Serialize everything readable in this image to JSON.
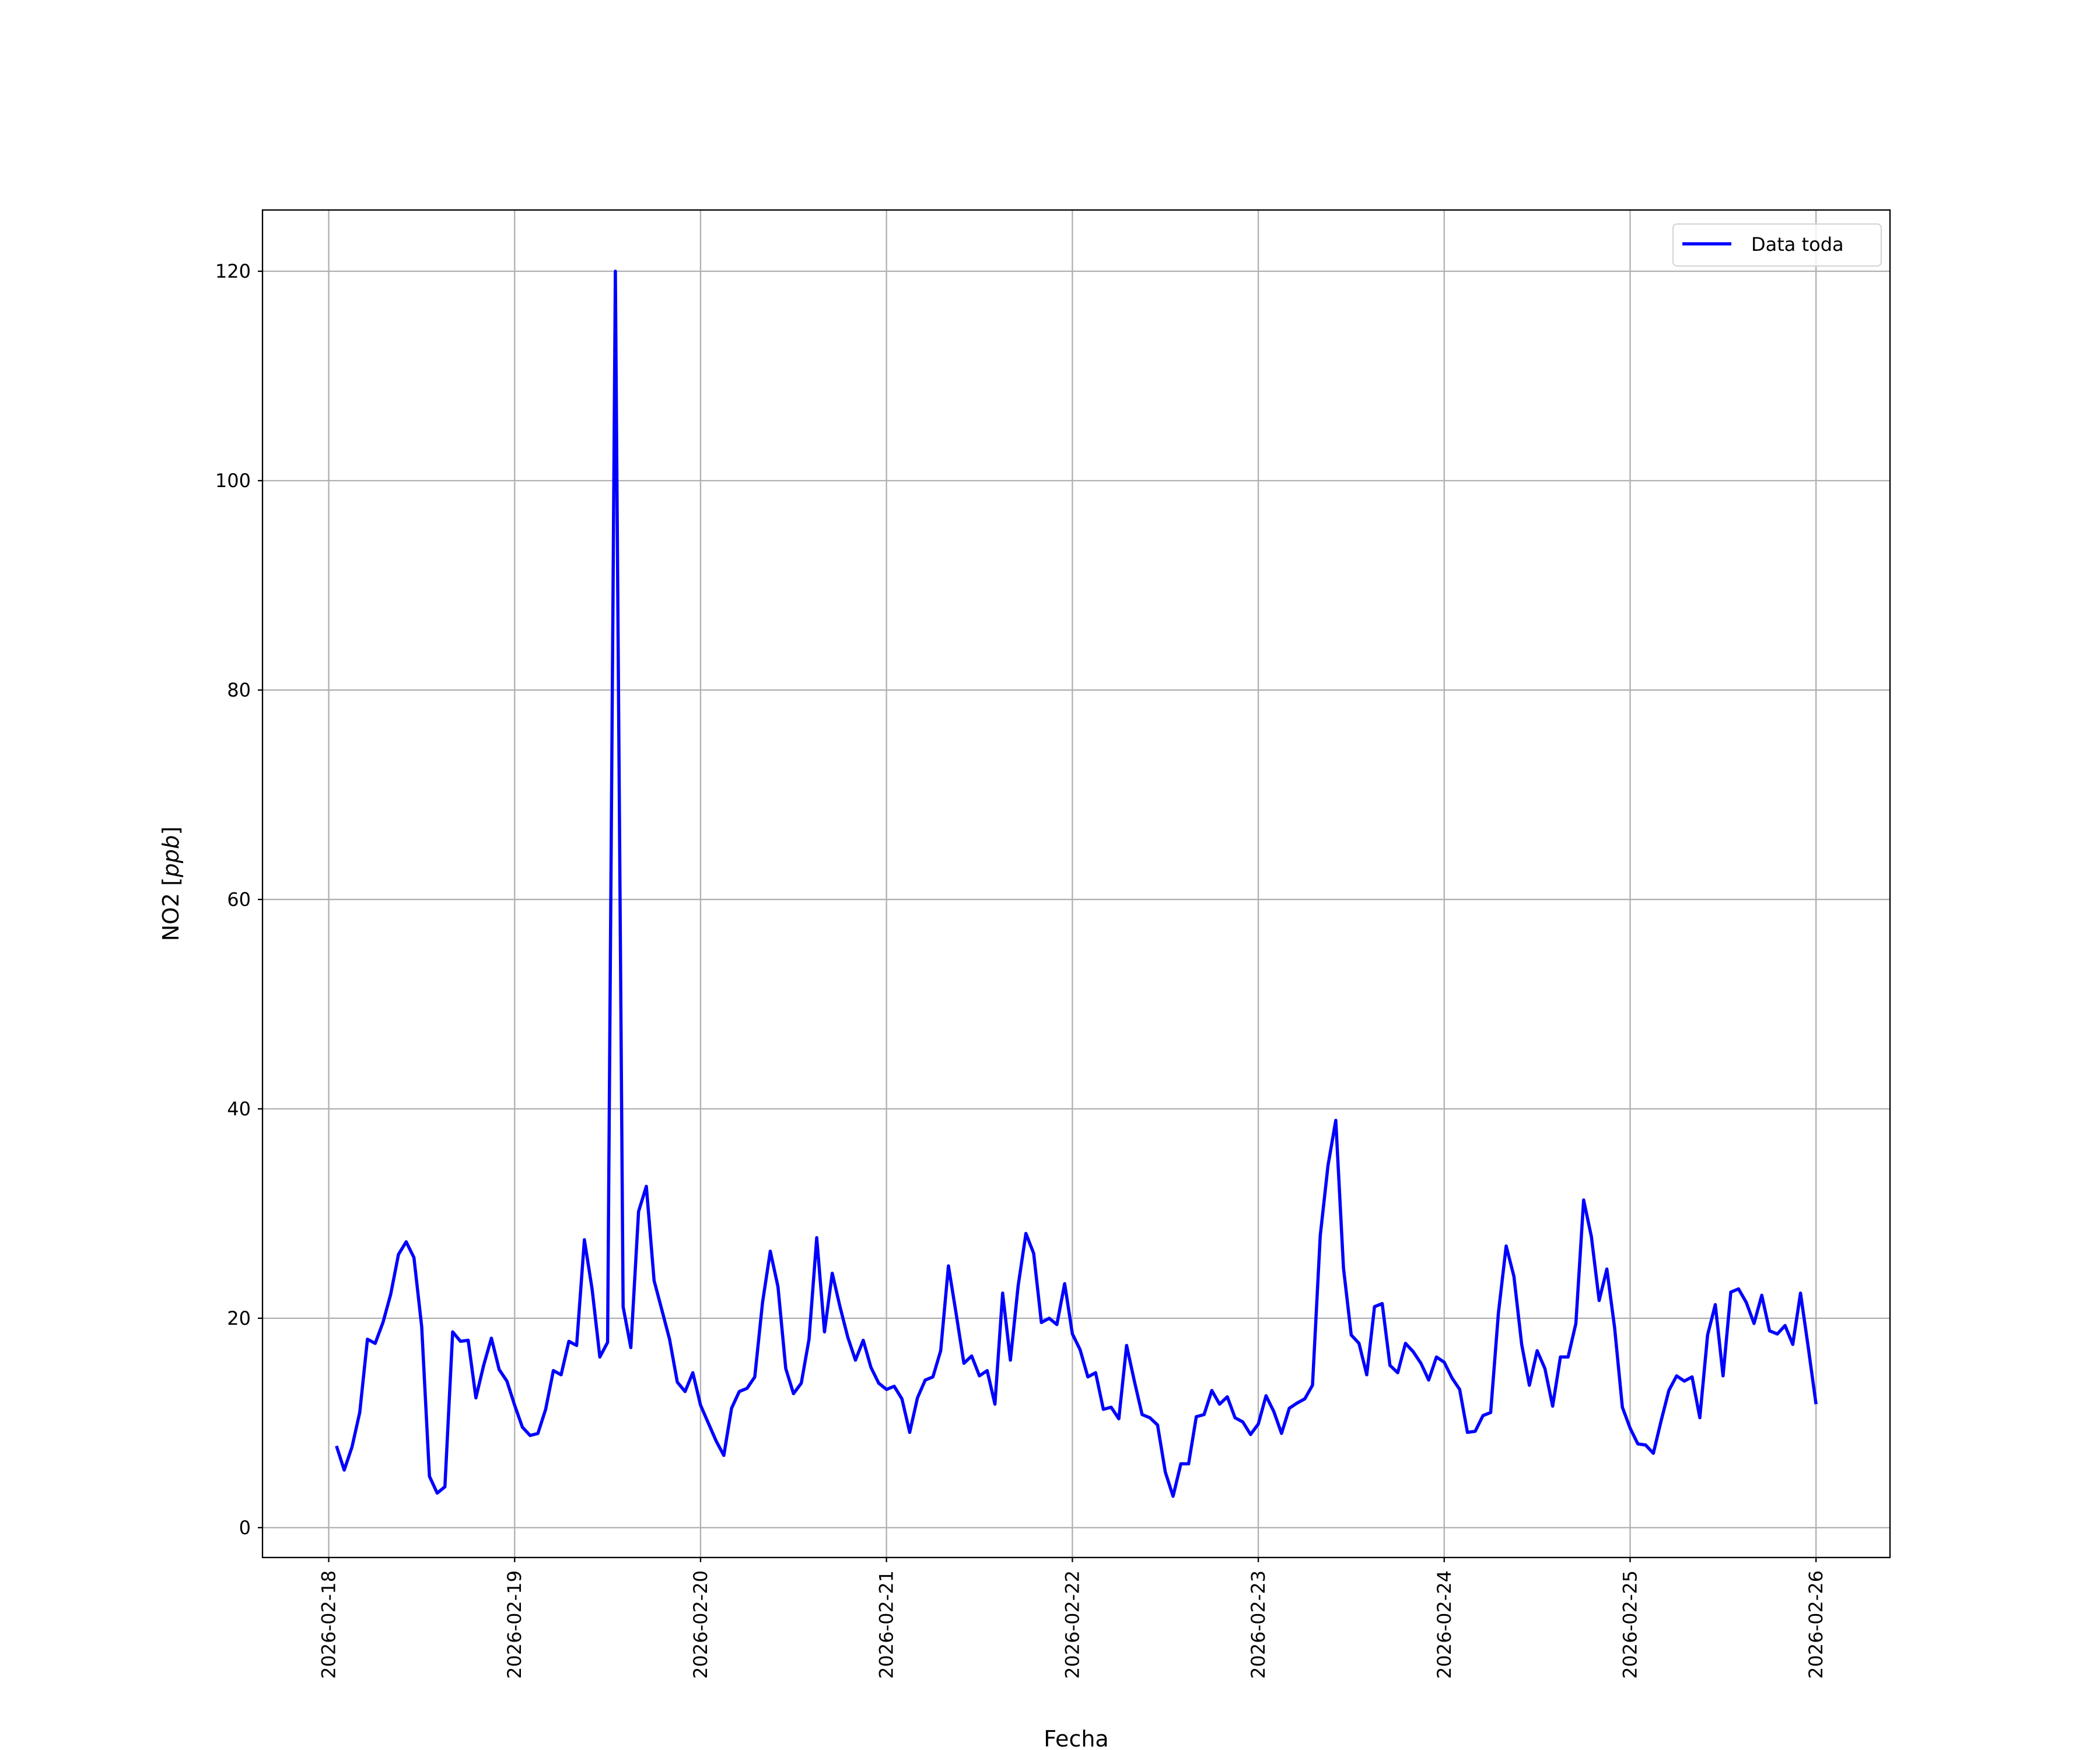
{
  "chart_data": {
    "type": "line",
    "title": "",
    "xlabel": "Fecha",
    "ylabel": "NO2 [ppb]",
    "ylabel_parts": {
      "plain": "NO2 [",
      "italic": "ppb",
      "close": "]"
    },
    "x_type": "datetime",
    "xlim": [
      "2026-02-17T15:27",
      "2026-02-26T09:33"
    ],
    "ylim": [
      -2.85,
      125.85
    ],
    "x_ticks": [
      "2026-02-18",
      "2026-02-19",
      "2026-02-20",
      "2026-02-21",
      "2026-02-22",
      "2026-02-23",
      "2026-02-24",
      "2026-02-25",
      "2026-02-26"
    ],
    "y_ticks": [
      0,
      20,
      40,
      60,
      80,
      100,
      120
    ],
    "grid": true,
    "legend": {
      "placement": "upper-right",
      "entries": [
        "Data toda"
      ]
    },
    "series": [
      {
        "name": "Data toda",
        "color": "#0000ff",
        "sampling": "hourly",
        "days": [
          {
            "date": "2026-02-18",
            "first_hour": 1,
            "values": [
              7.8,
              5.5,
              7.7,
              11.0,
              18.0,
              17.6,
              19.6,
              22.3,
              26.1,
              27.3,
              25.8,
              19.2,
              4.9,
              3.3,
              3.9,
              18.7,
              17.8,
              17.9,
              12.4,
              15.5,
              18.1,
              15.1,
              14.0
            ]
          },
          {
            "date": "2026-02-19",
            "first_hour": 0,
            "values": [
              11.7,
              9.6,
              8.8,
              9.0,
              11.3,
              15.0,
              14.6,
              17.8,
              17.4,
              27.5,
              22.8,
              16.3,
              17.7,
              120.0,
              21.1,
              17.2,
              30.2,
              32.6,
              23.6,
              20.8,
              18.0,
              13.9,
              13.0,
              14.8
            ]
          },
          {
            "date": "2026-02-20",
            "first_hour": 0,
            "values": [
              11.7,
              10.0,
              8.3,
              6.9,
              11.4,
              13.0,
              13.3,
              14.4,
              21.5,
              26.4,
              23.0,
              15.2,
              12.8,
              13.8,
              18.0,
              27.7,
              18.7,
              24.3,
              21.1,
              18.2,
              16.0,
              17.9,
              15.3,
              13.8
            ]
          },
          {
            "date": "2026-02-21",
            "first_hour": 0,
            "values": [
              13.2,
              13.5,
              12.3,
              9.1,
              12.4,
              14.1,
              14.4,
              16.9,
              25.0,
              20.4,
              15.7,
              16.4,
              14.5,
              15.0,
              11.8,
              22.4,
              16.0,
              23.1,
              28.1,
              26.2,
              19.6,
              20.0,
              19.4,
              23.3
            ]
          },
          {
            "date": "2026-02-22",
            "first_hour": 0,
            "values": [
              18.5,
              17.0,
              14.4,
              14.8,
              11.3,
              11.5,
              10.4,
              17.4,
              14.0,
              10.8,
              10.5,
              9.8,
              5.3,
              3.0,
              6.1,
              6.1,
              10.6,
              10.8,
              13.1,
              11.8,
              12.5,
              10.5,
              10.1,
              8.9
            ]
          },
          {
            "date": "2026-02-23",
            "first_hour": 0,
            "values": [
              9.9,
              12.6,
              11.1,
              9.0,
              11.4,
              11.9,
              12.3,
              13.6,
              27.9,
              34.6,
              38.9,
              24.8,
              18.4,
              17.6,
              14.6,
              21.1,
              21.4,
              15.5,
              14.8,
              17.6,
              16.8,
              15.7,
              14.1,
              16.3
            ]
          },
          {
            "date": "2026-02-24",
            "first_hour": 0,
            "values": [
              15.8,
              14.3,
              13.2,
              9.1,
              9.2,
              10.7,
              11.0,
              20.5,
              26.9,
              24.0,
              17.5,
              13.6,
              16.9,
              15.2,
              11.6,
              16.3,
              16.3,
              19.5,
              31.3,
              27.8,
              21.7,
              24.7,
              19.1,
              11.5
            ]
          },
          {
            "date": "2026-02-25",
            "first_hour": 0,
            "values": [
              9.5,
              8.0,
              7.9,
              7.1,
              10.2,
              13.1,
              14.5,
              14.0,
              14.4,
              10.5,
              18.4,
              21.3,
              14.5,
              22.5,
              22.8,
              21.5,
              19.5,
              22.2,
              18.8,
              18.5,
              19.3,
              17.5,
              22.4,
              17.2
            ]
          },
          {
            "date": "2026-02-26",
            "first_hour": 0,
            "values": [
              11.8
            ]
          }
        ]
      }
    ]
  }
}
